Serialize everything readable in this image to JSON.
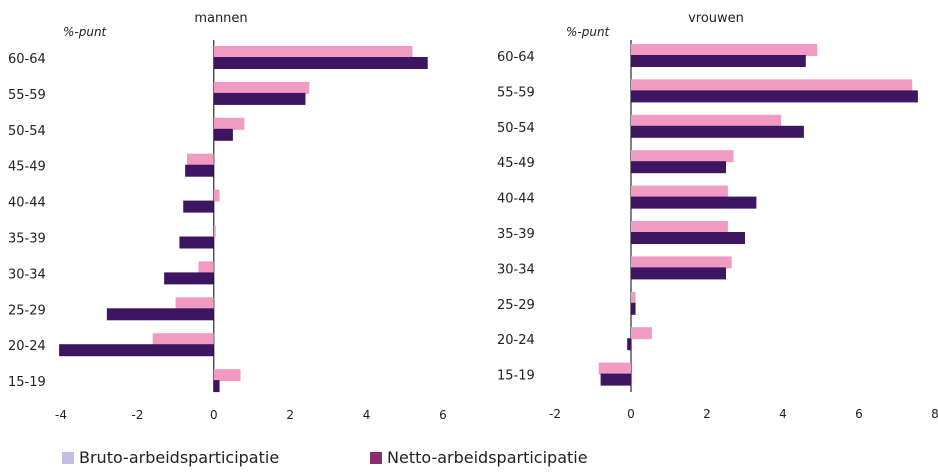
{
  "colors": {
    "bruto_bar": "#f19ac4",
    "netto_bar": "#3d1560",
    "bruto_legend": "#c3bfe3",
    "netto_legend": "#8a2e6e"
  },
  "legend": {
    "bruto": "Bruto-arbeidsparticipatie",
    "netto": "Netto-arbeidsparticipatie"
  },
  "chart_data": [
    {
      "type": "bar",
      "orientation": "horizontal",
      "title": "mannen",
      "unit_label": "%-punt",
      "categories": [
        "60-64",
        "55-59",
        "50-54",
        "45-49",
        "40-44",
        "35-39",
        "30-34",
        "25-29",
        "20-24",
        "15-19"
      ],
      "series": [
        {
          "name": "Bruto-arbeidsparticipatie",
          "values": [
            5.2,
            2.5,
            0.8,
            -0.7,
            0.15,
            0.05,
            -0.4,
            -1.0,
            -1.6,
            0.7
          ]
        },
        {
          "name": "Netto-arbeidsparticipatie",
          "values": [
            5.6,
            2.4,
            0.5,
            -0.75,
            -0.8,
            -0.9,
            -1.3,
            -2.8,
            -4.05,
            0.15
          ]
        }
      ],
      "xlim": [
        -4,
        6
      ],
      "xticks": [
        "-4",
        "-2",
        "0",
        "2",
        "4",
        "6"
      ],
      "grid": false
    },
    {
      "type": "bar",
      "orientation": "horizontal",
      "title": "vrouwen",
      "unit_label": "%-punt",
      "categories": [
        "60-64",
        "55-59",
        "50-54",
        "45-49",
        "40-44",
        "35-39",
        "30-34",
        "25-29",
        "20-24",
        "15-19"
      ],
      "series": [
        {
          "name": "Bruto-arbeidsparticipatie",
          "values": [
            4.9,
            7.4,
            3.95,
            2.7,
            2.55,
            2.55,
            2.65,
            0.12,
            0.55,
            -0.85
          ]
        },
        {
          "name": "Netto-arbeidsparticipatie",
          "values": [
            4.6,
            7.55,
            4.55,
            2.5,
            3.3,
            3.0,
            2.5,
            0.12,
            -0.1,
            -0.8
          ]
        }
      ],
      "xlim": [
        -2,
        8
      ],
      "xticks": [
        "-2",
        "0",
        "2",
        "4",
        "6",
        "8"
      ],
      "grid": false
    }
  ]
}
